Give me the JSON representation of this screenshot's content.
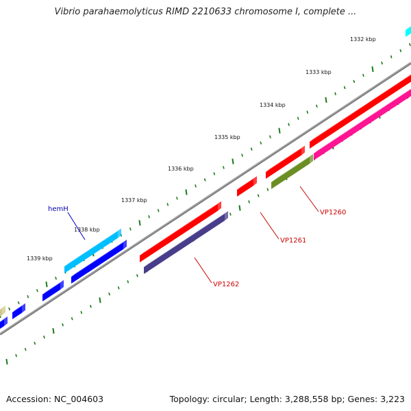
{
  "title": "Vibrio parahaemolyticus RIMD 2210633 chromosome I, complete ...",
  "footer": {
    "accession": "Accession: NC_004603",
    "stats": "Topology: circular; Length: 3,288,558 bp; Genes: 3,223"
  },
  "ticks": [
    "1332 kbp",
    "1333 kbp",
    "1334 kbp",
    "1335 kbp",
    "1336 kbp",
    "1337 kbp",
    "1338 kbp",
    "1339 kbp"
  ],
  "genes": [
    {
      "label": "VP1260",
      "label_color": "#cc0000",
      "line_color": "#cc0000"
    },
    {
      "label": "VP1261",
      "label_color": "#cc0000",
      "line_color": "#cc0000"
    },
    {
      "label": "VP1262",
      "label_color": "#cc0000",
      "line_color": "#cc0000"
    },
    {
      "label": "hemH",
      "label_color": "#0000aa",
      "line_color": "#0000cc"
    }
  ],
  "colors": {
    "backbone": "#808080",
    "tick": "#1a7a1a",
    "red": "#ff0000",
    "magenta": "#ff1493",
    "olive": "#6b8e23",
    "navy": "#483d8b",
    "blue": "#0000ff",
    "cyan": "#00bfff",
    "aqua": "#00ffff",
    "khaki": "#d2c68c"
  }
}
